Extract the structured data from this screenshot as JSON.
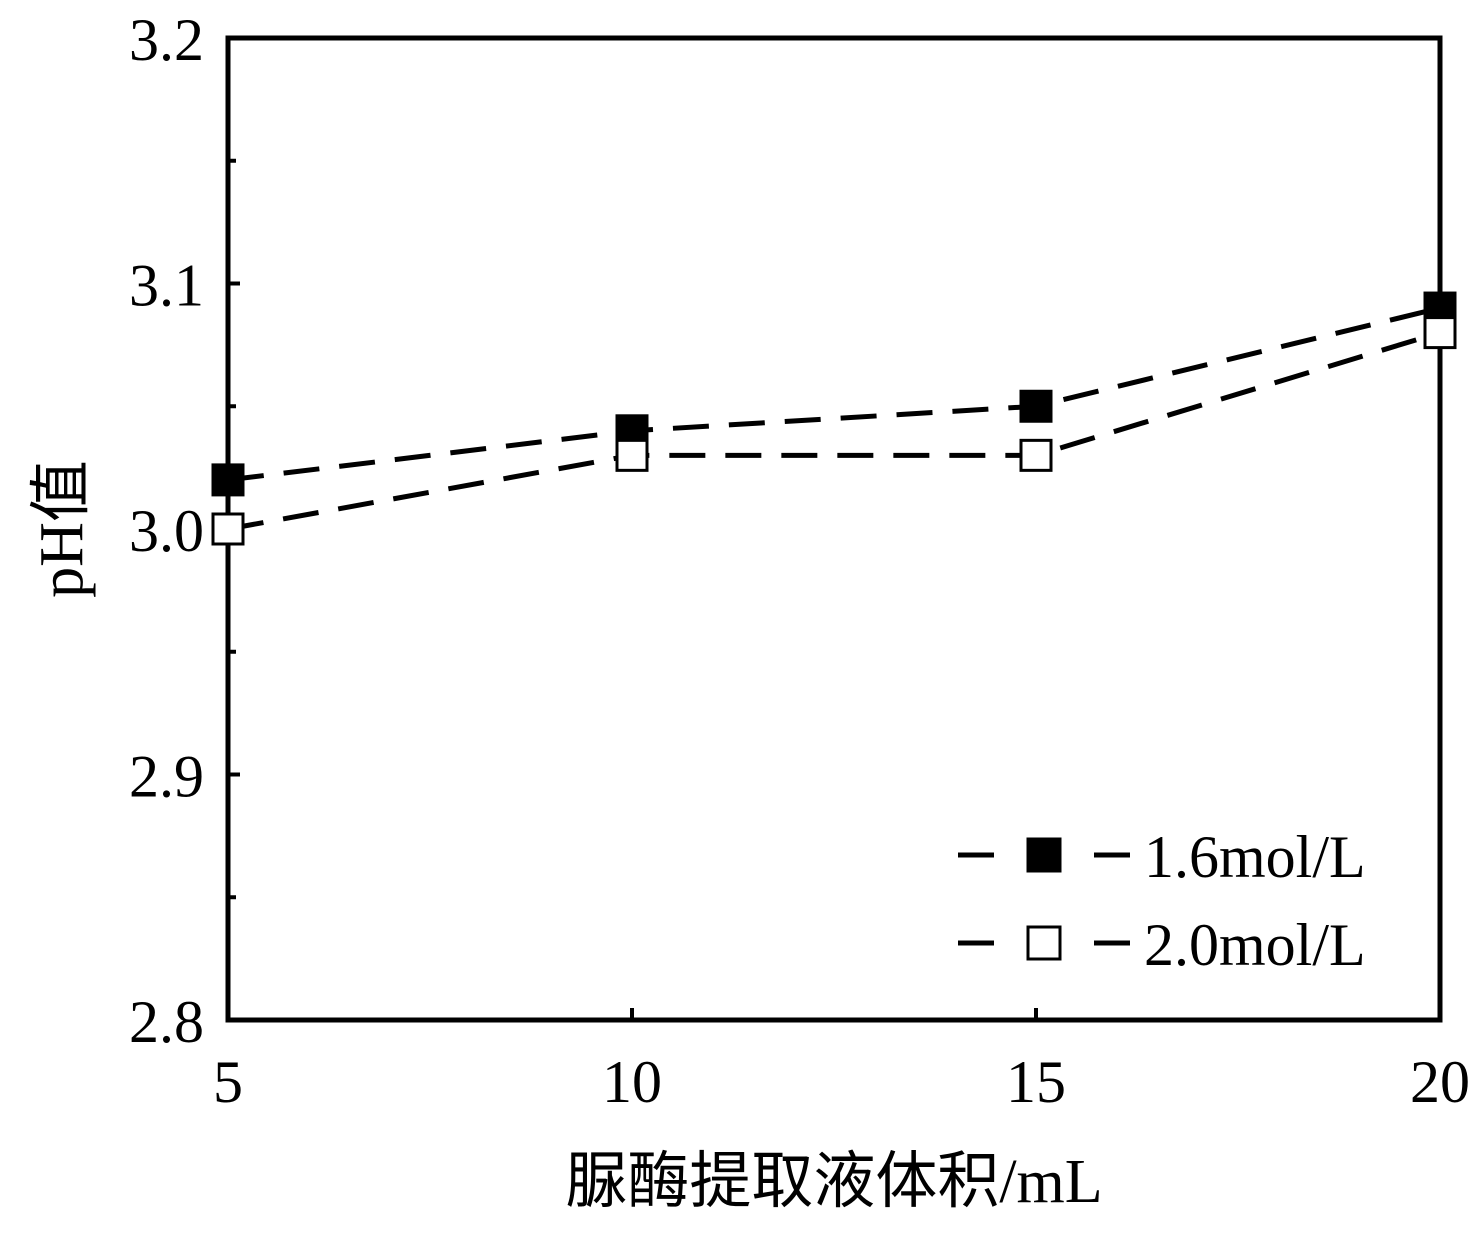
{
  "chart_data": {
    "type": "line",
    "title": "",
    "xlabel": "脲酶提取液体积/mL",
    "ylabel": "pH值",
    "xlim": [
      5,
      20
    ],
    "ylim": [
      2.8,
      3.2
    ],
    "x_ticks": [
      5,
      10,
      15,
      20
    ],
    "x_tick_labels": [
      "5",
      "10",
      "15",
      "20"
    ],
    "y_ticks": [
      2.8,
      2.9,
      3.0,
      3.1,
      3.2
    ],
    "y_tick_labels": [
      "2.8",
      "2.9",
      "3.0",
      "3.1",
      "3.2"
    ],
    "x": [
      5,
      10,
      15,
      20
    ],
    "series": [
      {
        "name": "1.6mol/L",
        "values": [
          3.02,
          3.04,
          3.05,
          3.09
        ],
        "marker": "filled-square",
        "line_style": "dashed",
        "color": "#000000"
      },
      {
        "name": "2.0mol/L",
        "values": [
          3.0,
          3.03,
          3.03,
          3.08
        ],
        "marker": "open-square",
        "line_style": "dashed",
        "color": "#000000"
      }
    ],
    "legend_position": "bottom-right",
    "grid": false
  }
}
